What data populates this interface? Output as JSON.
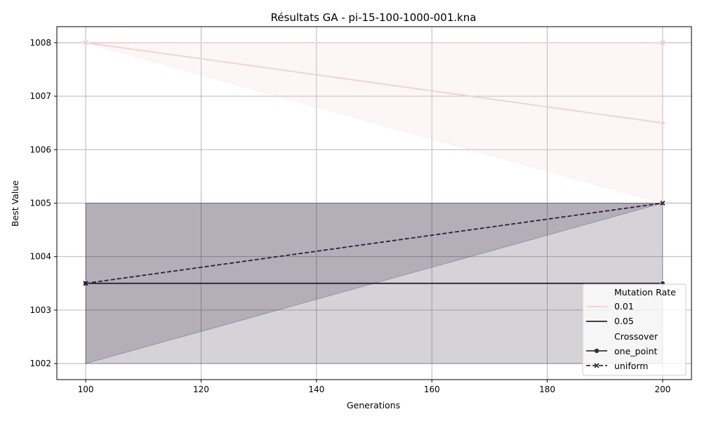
{
  "chart_data": {
    "type": "line",
    "title": "Résultats GA - pi-15-100-1000-001.kna",
    "xlabel": "Generations",
    "ylabel": "Best Value",
    "xlim": [
      95,
      205
    ],
    "ylim": [
      1001.7,
      1008.3
    ],
    "xticks": [
      100,
      120,
      140,
      160,
      180,
      200
    ],
    "yticks": [
      1002,
      1003,
      1004,
      1005,
      1006,
      1007,
      1008
    ],
    "grid": true,
    "legend_position": "lower-right",
    "series": [
      {
        "mutation_rate": "0.01",
        "crossover": "one_point",
        "color": "#f0d1d1",
        "x": [
          100,
          200
        ],
        "y": [
          1008,
          1006.5
        ],
        "ci_low": [
          1008,
          1005
        ],
        "ci_high": [
          1008,
          1008
        ]
      },
      {
        "mutation_rate": "0.01",
        "crossover": "uniform",
        "color": "#f0d1d1",
        "x": [
          100,
          200
        ],
        "y": [
          1008,
          1008
        ],
        "ci_low": [
          1008,
          1008
        ],
        "ci_high": [
          1008,
          1008
        ]
      },
      {
        "mutation_rate": "0.05",
        "crossover": "one_point",
        "color": "#2d1e3e",
        "x": [
          100,
          200
        ],
        "y": [
          1003.5,
          1003.5
        ],
        "ci_low": [
          1002,
          1002
        ],
        "ci_high": [
          1005,
          1005
        ]
      },
      {
        "mutation_rate": "0.05",
        "crossover": "uniform",
        "color": "#2d1e3e",
        "x": [
          100,
          200
        ],
        "y": [
          1003.5,
          1005
        ],
        "ci_low": [
          1002,
          1005
        ],
        "ci_high": [
          1005,
          1005
        ]
      }
    ],
    "legend": {
      "hue_title": "Mutation Rate",
      "hue_items": [
        {
          "label": "0.01",
          "color": "#f0d1d1"
        },
        {
          "label": "0.05",
          "color": "#2d1e3e"
        }
      ],
      "style_title": "Crossover",
      "style_items": [
        {
          "label": "one_point",
          "marker": "circle",
          "dash": "solid"
        },
        {
          "label": "uniform",
          "marker": "x",
          "dash": "dashed"
        }
      ]
    }
  }
}
